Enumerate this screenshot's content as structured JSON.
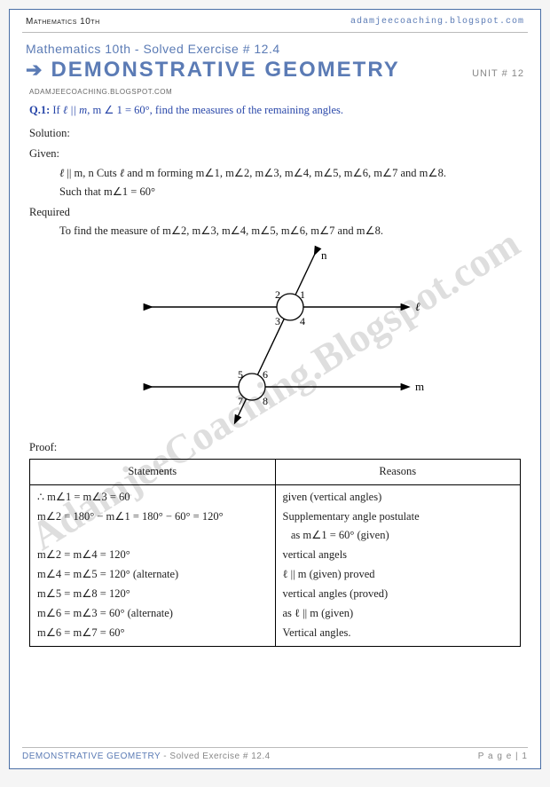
{
  "header": {
    "course": "Mathematics 10th",
    "url": "adamjeecoaching.blogspot.com",
    "subtitle": "Mathematics 10th - Solved Exercise # 12.4",
    "title": "DEMONSTRATIVE GEOMETRY",
    "unit": "UNIT # 12",
    "blog": "ADAMJEECOACHING.BLOGSPOT.COM"
  },
  "question": {
    "num": "Q.1:",
    "text_a": "If ",
    "text_b": "ℓ || m",
    "text_c": ", m ∠ 1 = 60°, find the measures of the remaining angles."
  },
  "solution": {
    "sol": "Solution:",
    "given": "Given:",
    "given_l1": "ℓ || m, n Cuts ℓ and m forming m∠1, m∠2, m∠3, m∠4, m∠5, m∠6, m∠7 and m∠8.",
    "given_l2": "Such that m∠1 = 60°",
    "req": "Required",
    "req_l1": "To find the measure of m∠2, m∠3, m∠4, m∠5, m∠6, m∠7 and m∠8.",
    "proof": "Proof:"
  },
  "diagram": {
    "labels": {
      "n": "n",
      "l": "ℓ",
      "m": "m"
    },
    "angles": [
      "1",
      "2",
      "3",
      "4",
      "5",
      "6",
      "7",
      "8"
    ],
    "colors": {
      "stroke": "#000000",
      "fill": "#ffffff"
    }
  },
  "table": {
    "head": [
      "Statements",
      "Reasons"
    ],
    "rows": [
      [
        "∴ m∠1 = m∠3 = 60",
        "given (vertical angles)"
      ],
      [
        "m∠2 = 180° − m∠1 = 180° − 60° = 120°",
        "Supplementary angle postulate"
      ],
      [
        "",
        "   as m∠1 = 60° (given)"
      ],
      [
        "m∠2 = m∠4 = 120°",
        "vertical angels"
      ],
      [
        "m∠4 = m∠5 = 120° (alternate)",
        "ℓ || m (given) proved"
      ],
      [
        "m∠5 = m∠8 = 120°",
        "vertical angles (proved)"
      ],
      [
        "m∠6 = m∠3 = 60° (alternate)",
        "as ℓ || m (given)"
      ],
      [
        "m∠6 = m∠7 = 60°",
        "Vertical angles."
      ]
    ]
  },
  "footer": {
    "left_a": "DEMONSTRATIVE GEOMETRY",
    "left_b": " - Solved Exercise # 12.4",
    "right": "P a g e  | 1"
  },
  "watermark": "AdamjeeCoaching.Blogspot.com"
}
